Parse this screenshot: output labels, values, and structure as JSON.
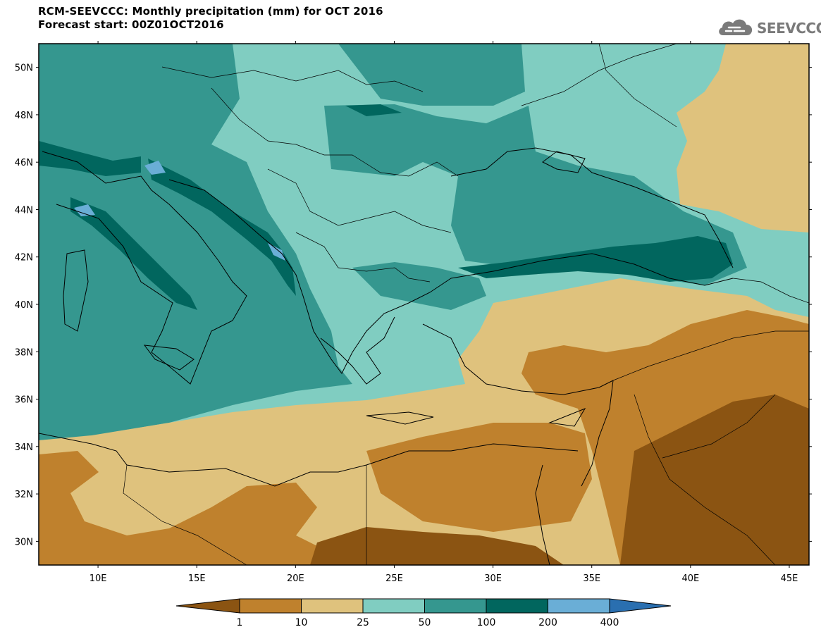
{
  "title": {
    "line1": "RCM-SEEVCCC: Monthly precipitation (mm) for OCT 2016",
    "line2": "Forecast start: 00Z01OCT2016"
  },
  "logo": {
    "text": "SEEVCCC",
    "icon": "cloud-icon",
    "color": "#7a7a7a"
  },
  "map": {
    "lat_labels": [
      "50N",
      "48N",
      "46N",
      "44N",
      "42N",
      "40N",
      "38N",
      "36N",
      "34N",
      "32N",
      "30N"
    ],
    "lon_labels": [
      "10E",
      "15E",
      "20E",
      "25E",
      "30E",
      "35E",
      "40E",
      "45E"
    ],
    "lat_range": [
      29,
      51
    ],
    "lon_range": [
      7,
      46
    ],
    "variable": "Monthly precipitation",
    "units": "mm"
  },
  "colorbar": {
    "labels": [
      "1",
      "10",
      "25",
      "50",
      "100",
      "200",
      "400"
    ],
    "colors": [
      "#8b5412",
      "#bf812d",
      "#dfc27d",
      "#80cdc1",
      "#35978f",
      "#01665e",
      "#6aaed6",
      "#2a6fb0"
    ]
  }
}
